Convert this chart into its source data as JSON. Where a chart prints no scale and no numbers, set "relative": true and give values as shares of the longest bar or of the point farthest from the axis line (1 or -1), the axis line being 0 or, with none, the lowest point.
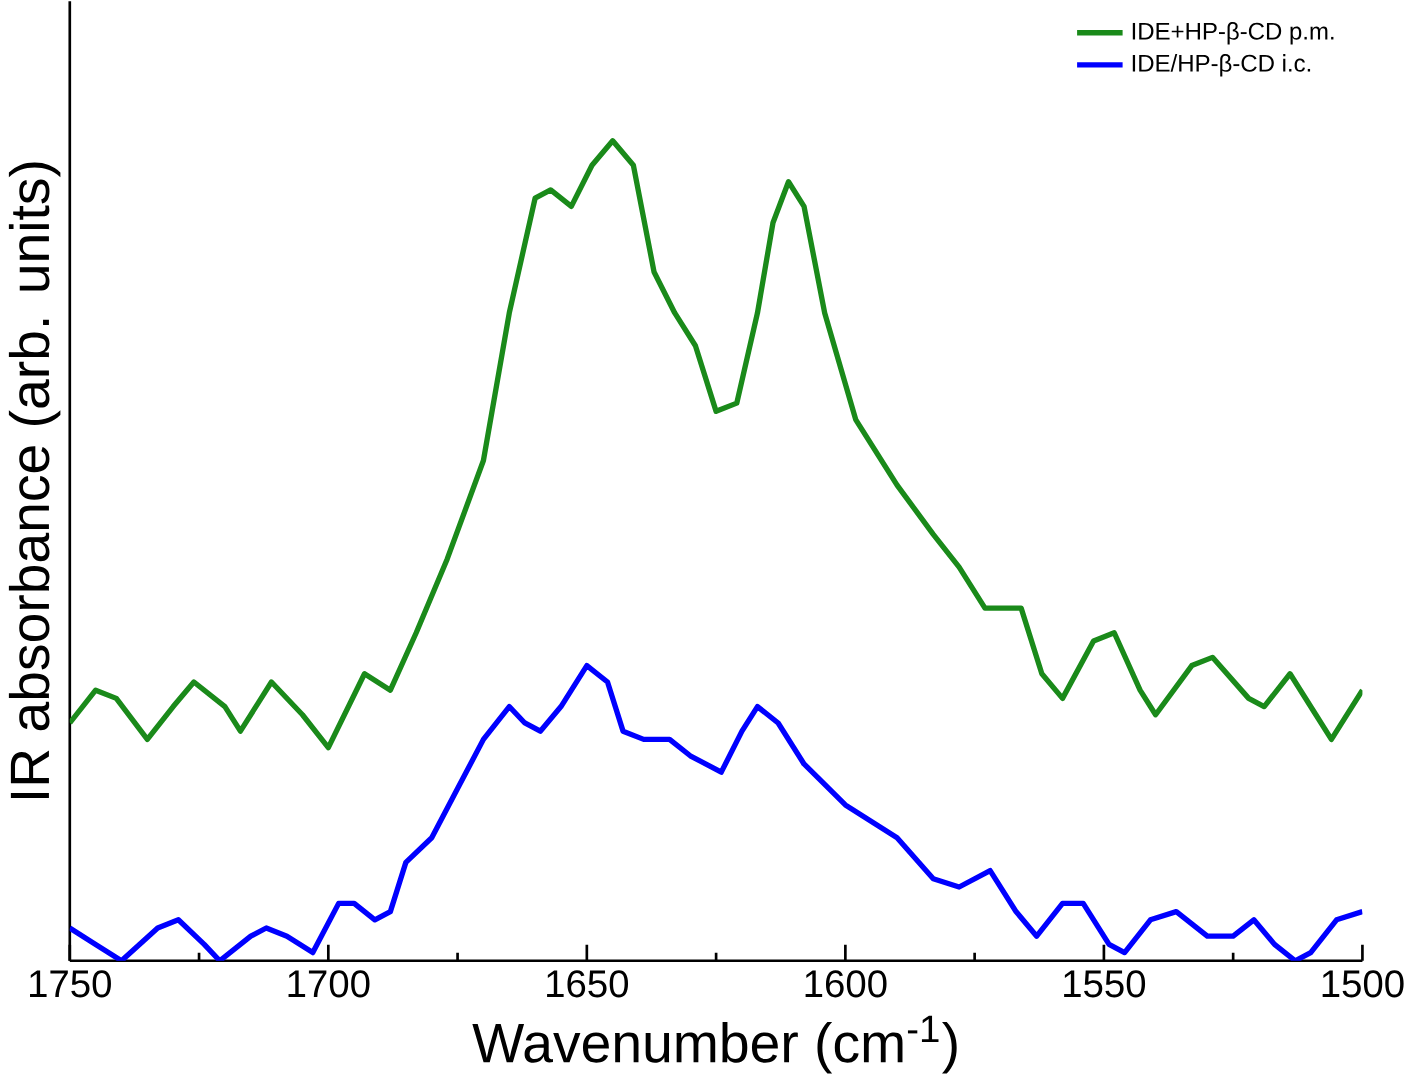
{
  "chart_data": {
    "type": "line",
    "xlabel": "Wavenumber (cm$^{-1}$)",
    "ylabel": "IR absorbance (arb. units)",
    "relative": true,
    "xlim": [
      1750,
      1500
    ],
    "xticks": [
      1750,
      1700,
      1650,
      1600,
      1550,
      1500
    ],
    "tick_labels": "x",
    "legend": "top right",
    "grid": false,
    "marker": "none",
    "line_style": "solid",
    "series": [
      {
        "name": "IDE+HP-β-CD p.m.",
        "color": "#1a8a1a",
        "x": [
          1750,
          1745,
          1741,
          1735,
          1730,
          1726,
          1720,
          1717,
          1711,
          1705,
          1700,
          1693,
          1688,
          1683,
          1677,
          1670,
          1665,
          1660,
          1657,
          1653,
          1649,
          1645,
          1641,
          1637,
          1633,
          1629,
          1625,
          1621,
          1617,
          1614,
          1611,
          1608,
          1604,
          1598,
          1590,
          1583,
          1578,
          1573,
          1566,
          1562,
          1558,
          1552,
          1548,
          1543,
          1540,
          1533,
          1529,
          1522,
          1519,
          1514,
          1509,
          1506,
          1500
        ],
        "values": [
          0.29,
          0.33,
          0.32,
          0.27,
          0.31,
          0.34,
          0.31,
          0.28,
          0.34,
          0.3,
          0.26,
          0.35,
          0.33,
          0.4,
          0.49,
          0.61,
          0.79,
          0.93,
          0.94,
          0.92,
          0.97,
          1,
          0.97,
          0.84,
          0.79,
          0.75,
          0.67,
          0.68,
          0.79,
          0.9,
          0.95,
          0.92,
          0.79,
          0.66,
          0.58,
          0.52,
          0.48,
          0.43,
          0.43,
          0.35,
          0.32,
          0.39,
          0.4,
          0.33,
          0.3,
          0.36,
          0.37,
          0.32,
          0.31,
          0.35,
          0.3,
          0.27,
          0.33
        ]
      },
      {
        "name": "IDE/HP-β-CD i.c.",
        "color": "#0000ff",
        "x": [
          1750,
          1745,
          1740,
          1733,
          1729,
          1724,
          1721,
          1715,
          1712,
          1708,
          1703,
          1698,
          1695,
          1691,
          1688,
          1685,
          1680,
          1675,
          1670,
          1665,
          1662,
          1659,
          1655,
          1650,
          1646,
          1643,
          1639,
          1634,
          1630,
          1624,
          1620,
          1617,
          1613,
          1608,
          1600,
          1590,
          1583,
          1578,
          1572,
          1567,
          1563,
          1558,
          1554,
          1549,
          1546,
          1541,
          1536,
          1530,
          1525,
          1521,
          1517,
          1513,
          1510,
          1505,
          1500
        ],
        "values": [
          0.04,
          0.02,
          0,
          0.04,
          0.05,
          0.02,
          0,
          0.03,
          0.04,
          0.03,
          0.01,
          0.07,
          0.07,
          0.05,
          0.06,
          0.12,
          0.15,
          0.21,
          0.27,
          0.31,
          0.29,
          0.28,
          0.31,
          0.36,
          0.34,
          0.28,
          0.27,
          0.27,
          0.25,
          0.23,
          0.28,
          0.31,
          0.29,
          0.24,
          0.19,
          0.15,
          0.1,
          0.09,
          0.11,
          0.06,
          0.03,
          0.07,
          0.07,
          0.02,
          0.01,
          0.05,
          0.06,
          0.03,
          0.03,
          0.05,
          0.02,
          0,
          0.01,
          0.05,
          0.06
        ]
      }
    ]
  }
}
